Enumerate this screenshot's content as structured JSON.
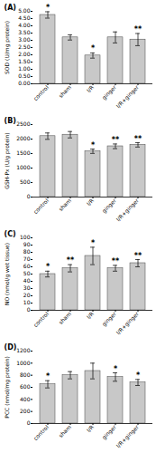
{
  "chart_data": [
    {
      "type": "bar",
      "title": "(A)",
      "ylabel": "SOD (U/mg protein)",
      "categories": [
        "control",
        "sham",
        "I/R",
        "ginger",
        "I/R+ginger"
      ],
      "values": [
        4.75,
        3.2,
        1.95,
        3.2,
        3.05
      ],
      "errors": [
        0.22,
        0.18,
        0.18,
        0.38,
        0.42
      ],
      "color": "#c8c8c8",
      "ylim": [
        0,
        5.0
      ],
      "yticks": [
        {
          "value": 0.0,
          "label": "0.00"
        },
        {
          "value": 0.5,
          "label": "0.50"
        },
        {
          "value": 1.0,
          "label": "1.00"
        },
        {
          "value": 1.5,
          "label": "1.50"
        },
        {
          "value": 2.0,
          "label": "2.00"
        },
        {
          "value": 2.5,
          "label": "2.50"
        },
        {
          "value": 3.0,
          "label": "3.00"
        },
        {
          "value": 3.5,
          "label": "3.50"
        },
        {
          "value": 4.0,
          "label": "4.00"
        },
        {
          "value": 4.5,
          "label": "4.50"
        },
        {
          "value": 5.0,
          "label": "5.00"
        }
      ],
      "annotations": [
        {
          "category": "control",
          "text": "*"
        },
        {
          "category": "I/R",
          "text": "*"
        },
        {
          "category": "I/R+ginger",
          "text": "**"
        }
      ]
    },
    {
      "type": "bar",
      "title": "(B)",
      "ylabel": "GSH-Px (U/g protein)",
      "categories": [
        "control",
        "sham",
        "I/R",
        "ginger",
        "I/R+ginger"
      ],
      "values": [
        2100,
        2150,
        1580,
        1750,
        1800
      ],
      "errors": [
        110,
        110,
        75,
        80,
        75
      ],
      "color": "#c8c8c8",
      "ylim": [
        0,
        2500
      ],
      "yticks": [
        0,
        500,
        1000,
        1500,
        2000,
        2500
      ],
      "annotations": [
        {
          "category": "I/R",
          "text": "*"
        },
        {
          "category": "ginger",
          "text": "**"
        },
        {
          "category": "I/R+ginger",
          "text": "**"
        }
      ]
    },
    {
      "type": "bar",
      "title": "(C)",
      "ylabel": "NO (nmol/g wet tissue)",
      "categories": [
        "control",
        "sham",
        "I/R",
        "ginger",
        "I/R+ginger"
      ],
      "values": [
        50,
        58,
        75,
        58,
        65
      ],
      "errors": [
        4,
        5,
        12,
        4,
        5
      ],
      "color": "#c8c8c8",
      "ylim": [
        0,
        100
      ],
      "yticks": [
        0,
        10,
        20,
        30,
        40,
        50,
        60,
        70,
        80,
        90,
        100
      ],
      "annotations": [
        {
          "category": "control",
          "text": "*"
        },
        {
          "category": "sham",
          "text": "**"
        },
        {
          "category": "I/R",
          "text": "*"
        },
        {
          "category": "ginger",
          "text": "**"
        },
        {
          "category": "I/R+ginger",
          "text": "**"
        }
      ]
    },
    {
      "type": "bar",
      "title": "(D)",
      "ylabel": "PCC (nmol/mg protein)",
      "categories": [
        "control",
        "sham",
        "I/R",
        "ginger",
        "I/R+ginger"
      ],
      "values": [
        650,
        800,
        870,
        770,
        680
      ],
      "errors": [
        60,
        60,
        130,
        70,
        50
      ],
      "color": "#c8c8c8",
      "ylim": [
        0,
        1200
      ],
      "yticks": [
        0,
        200,
        400,
        600,
        800,
        1000,
        1200
      ],
      "annotations": [
        {
          "category": "control",
          "text": "*"
        },
        {
          "category": "ginger",
          "text": "*"
        },
        {
          "category": "I/R+ginger",
          "text": "*"
        }
      ]
    }
  ]
}
